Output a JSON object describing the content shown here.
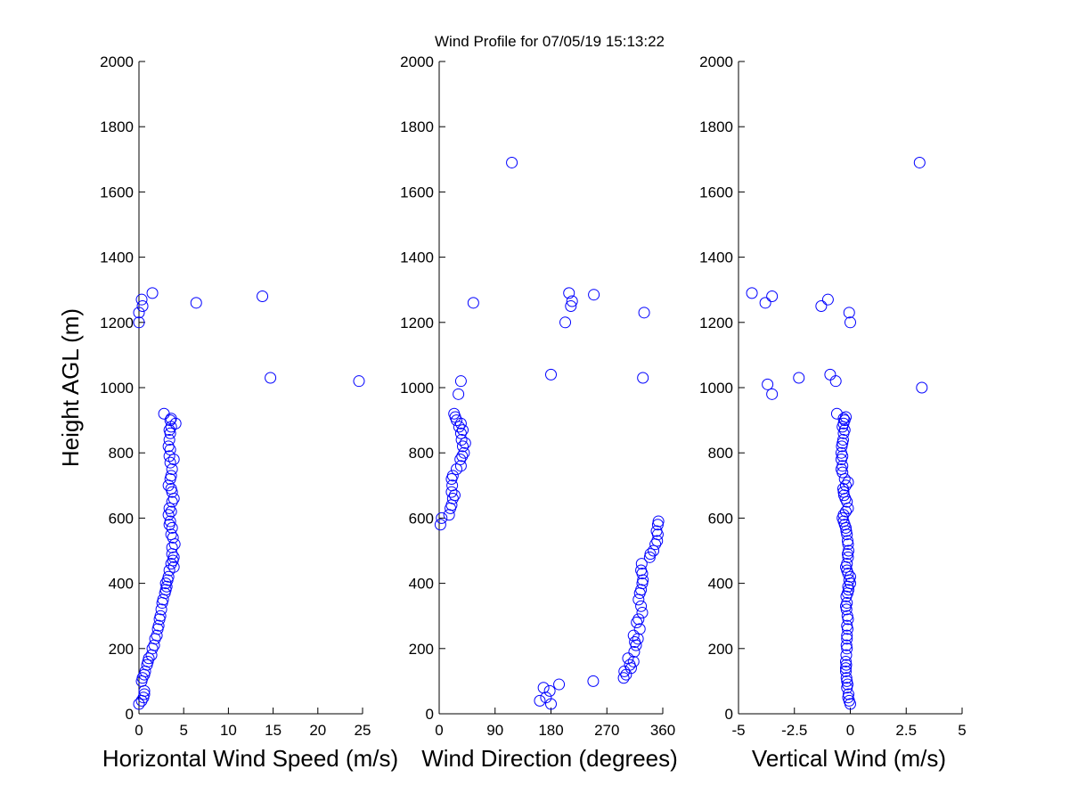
{
  "title": "Wind Profile for  07/05/19 15:13:22",
  "marker_color": "#0000ff",
  "marker_shape": "open-circle",
  "chart_data": [
    {
      "type": "scatter",
      "xlabel": "Horizontal Wind Speed (m/s)",
      "ylabel": "Height AGL (m)",
      "xlim": [
        0,
        25
      ],
      "ylim": [
        0,
        2000
      ],
      "xticks": [
        "0",
        "5",
        "10",
        "15",
        "20",
        "25"
      ],
      "yticks": [
        "0",
        "200",
        "400",
        "600",
        "800",
        "1000",
        "1200",
        "1400",
        "1600",
        "1800",
        "2000"
      ],
      "points": [
        [
          0.0,
          30
        ],
        [
          0.3,
          40
        ],
        [
          0.5,
          50
        ],
        [
          0.6,
          60
        ],
        [
          0.6,
          70
        ],
        [
          0.3,
          100
        ],
        [
          0.4,
          110
        ],
        [
          0.6,
          120
        ],
        [
          0.7,
          130
        ],
        [
          0.9,
          150
        ],
        [
          1.0,
          160
        ],
        [
          1.1,
          170
        ],
        [
          1.4,
          180
        ],
        [
          1.5,
          200
        ],
        [
          1.7,
          210
        ],
        [
          1.8,
          230
        ],
        [
          2.0,
          240
        ],
        [
          2.1,
          260
        ],
        [
          2.2,
          270
        ],
        [
          2.3,
          290
        ],
        [
          2.4,
          300
        ],
        [
          2.5,
          320
        ],
        [
          2.6,
          340
        ],
        [
          2.7,
          350
        ],
        [
          2.9,
          370
        ],
        [
          3.0,
          380
        ],
        [
          3.1,
          390
        ],
        [
          3.0,
          400
        ],
        [
          3.2,
          410
        ],
        [
          3.3,
          420
        ],
        [
          3.4,
          440
        ],
        [
          3.6,
          460
        ],
        [
          3.9,
          450
        ],
        [
          3.8,
          470
        ],
        [
          3.9,
          480
        ],
        [
          3.7,
          490
        ],
        [
          3.7,
          510
        ],
        [
          4.0,
          520
        ],
        [
          3.8,
          540
        ],
        [
          3.6,
          550
        ],
        [
          3.7,
          570
        ],
        [
          3.4,
          580
        ],
        [
          3.5,
          590
        ],
        [
          3.3,
          610
        ],
        [
          3.6,
          620
        ],
        [
          3.4,
          630
        ],
        [
          3.7,
          650
        ],
        [
          3.9,
          660
        ],
        [
          3.7,
          680
        ],
        [
          3.6,
          690
        ],
        [
          3.3,
          700
        ],
        [
          3.5,
          720
        ],
        [
          3.6,
          730
        ],
        [
          3.7,
          750
        ],
        [
          3.5,
          770
        ],
        [
          3.9,
          780
        ],
        [
          3.4,
          790
        ],
        [
          3.5,
          810
        ],
        [
          3.3,
          820
        ],
        [
          3.4,
          840
        ],
        [
          3.5,
          860
        ],
        [
          3.4,
          870
        ],
        [
          3.6,
          880
        ],
        [
          4.1,
          890
        ],
        [
          3.5,
          900
        ],
        [
          3.6,
          905
        ],
        [
          2.8,
          920
        ],
        [
          24.6,
          1020
        ],
        [
          14.7,
          1030
        ],
        [
          0.0,
          1200
        ],
        [
          0.0,
          1230
        ],
        [
          0.4,
          1250
        ],
        [
          6.4,
          1260
        ],
        [
          0.3,
          1270
        ],
        [
          13.8,
          1280
        ],
        [
          1.5,
          1290
        ]
      ]
    },
    {
      "type": "scatter",
      "xlabel": "Wind Direction (degrees)",
      "ylabel": "",
      "xlim": [
        0,
        360
      ],
      "ylim": [
        0,
        2000
      ],
      "xticks": [
        "0",
        "90",
        "180",
        "270",
        "360"
      ],
      "yticks": [
        "0",
        "200",
        "400",
        "600",
        "800",
        "1000",
        "1200",
        "1400",
        "1600",
        "1800",
        "2000"
      ],
      "points": [
        [
          180,
          30
        ],
        [
          162,
          40
        ],
        [
          172,
          50
        ],
        [
          178,
          70
        ],
        [
          168,
          80
        ],
        [
          193,
          90
        ],
        [
          248,
          100
        ],
        [
          297,
          110
        ],
        [
          301,
          120
        ],
        [
          298,
          130
        ],
        [
          309,
          140
        ],
        [
          307,
          150
        ],
        [
          313,
          160
        ],
        [
          304,
          170
        ],
        [
          314,
          190
        ],
        [
          317,
          210
        ],
        [
          315,
          220
        ],
        [
          320,
          230
        ],
        [
          313,
          240
        ],
        [
          323,
          260
        ],
        [
          318,
          280
        ],
        [
          321,
          290
        ],
        [
          327,
          310
        ],
        [
          325,
          330
        ],
        [
          321,
          350
        ],
        [
          323,
          370
        ],
        [
          325,
          380
        ],
        [
          327,
          400
        ],
        [
          328,
          410
        ],
        [
          327,
          430
        ],
        [
          325,
          440
        ],
        [
          326,
          460
        ],
        [
          339,
          480
        ],
        [
          340,
          490
        ],
        [
          345,
          500
        ],
        [
          348,
          520
        ],
        [
          351,
          530
        ],
        [
          352,
          550
        ],
        [
          350,
          560
        ],
        [
          352,
          580
        ],
        [
          353,
          590
        ],
        [
          2,
          580
        ],
        [
          4,
          600
        ],
        [
          16,
          610
        ],
        [
          18,
          630
        ],
        [
          20,
          640
        ],
        [
          22,
          660
        ],
        [
          25,
          670
        ],
        [
          20,
          680
        ],
        [
          21,
          700
        ],
        [
          20,
          720
        ],
        [
          22,
          730
        ],
        [
          28,
          750
        ],
        [
          35,
          760
        ],
        [
          34,
          780
        ],
        [
          37,
          790
        ],
        [
          40,
          800
        ],
        [
          38,
          820
        ],
        [
          42,
          830
        ],
        [
          36,
          840
        ],
        [
          35,
          860
        ],
        [
          38,
          870
        ],
        [
          32,
          880
        ],
        [
          35,
          890
        ],
        [
          28,
          900
        ],
        [
          26,
          910
        ],
        [
          24,
          920
        ],
        [
          31,
          980
        ],
        [
          35,
          1020
        ],
        [
          180,
          1040
        ],
        [
          328,
          1030
        ],
        [
          203,
          1200
        ],
        [
          330,
          1230
        ],
        [
          212,
          1250
        ],
        [
          214,
          1265
        ],
        [
          209,
          1290
        ],
        [
          249,
          1285
        ],
        [
          55,
          1260
        ],
        [
          117,
          1690
        ]
      ]
    },
    {
      "type": "scatter",
      "xlabel": "Vertical Wind (m/s)",
      "ylabel": "",
      "xlim": [
        -5,
        5
      ],
      "ylim": [
        0,
        2000
      ],
      "xticks": [
        "-5",
        "-2.5",
        "0",
        "2.5",
        "5"
      ],
      "yticks": [
        "0",
        "200",
        "400",
        "600",
        "800",
        "1000",
        "1200",
        "1400",
        "1600",
        "1800",
        "2000"
      ],
      "points": [
        [
          0.0,
          30
        ],
        [
          -0.05,
          40
        ],
        [
          -0.1,
          50
        ],
        [
          -0.08,
          60
        ],
        [
          -0.15,
          80
        ],
        [
          -0.12,
          90
        ],
        [
          -0.15,
          100
        ],
        [
          -0.17,
          110
        ],
        [
          -0.2,
          130
        ],
        [
          -0.2,
          140
        ],
        [
          -0.18,
          150
        ],
        [
          -0.2,
          160
        ],
        [
          -0.18,
          180
        ],
        [
          -0.15,
          200
        ],
        [
          -0.17,
          210
        ],
        [
          -0.15,
          230
        ],
        [
          -0.15,
          240
        ],
        [
          -0.12,
          260
        ],
        [
          -0.15,
          270
        ],
        [
          -0.1,
          290
        ],
        [
          -0.13,
          300
        ],
        [
          -0.17,
          320
        ],
        [
          -0.2,
          330
        ],
        [
          -0.15,
          340
        ],
        [
          -0.18,
          360
        ],
        [
          -0.12,
          370
        ],
        [
          -0.08,
          380
        ],
        [
          -0.1,
          390
        ],
        [
          0.0,
          400
        ],
        [
          -0.05,
          410
        ],
        [
          0.0,
          420
        ],
        [
          -0.1,
          430
        ],
        [
          -0.15,
          440
        ],
        [
          -0.2,
          450
        ],
        [
          -0.15,
          460
        ],
        [
          -0.1,
          480
        ],
        [
          -0.12,
          490
        ],
        [
          -0.08,
          500
        ],
        [
          -0.1,
          520
        ],
        [
          -0.12,
          530
        ],
        [
          -0.15,
          550
        ],
        [
          -0.18,
          560
        ],
        [
          -0.2,
          570
        ],
        [
          -0.25,
          580
        ],
        [
          -0.3,
          590
        ],
        [
          -0.35,
          600
        ],
        [
          -0.3,
          610
        ],
        [
          -0.2,
          620
        ],
        [
          -0.1,
          630
        ],
        [
          -0.15,
          650
        ],
        [
          -0.22,
          660
        ],
        [
          -0.28,
          670
        ],
        [
          -0.3,
          680
        ],
        [
          -0.32,
          690
        ],
        [
          -0.2,
          700
        ],
        [
          -0.1,
          710
        ],
        [
          -0.25,
          720
        ],
        [
          -0.35,
          740
        ],
        [
          -0.4,
          750
        ],
        [
          -0.35,
          760
        ],
        [
          -0.4,
          780
        ],
        [
          -0.35,
          790
        ],
        [
          -0.4,
          800
        ],
        [
          -0.38,
          820
        ],
        [
          -0.35,
          830
        ],
        [
          -0.32,
          840
        ],
        [
          -0.3,
          860
        ],
        [
          -0.25,
          870
        ],
        [
          -0.35,
          880
        ],
        [
          -0.3,
          890
        ],
        [
          -0.25,
          900
        ],
        [
          -0.2,
          910
        ],
        [
          -0.6,
          920
        ],
        [
          -0.3,
          905
        ],
        [
          -3.7,
          1010
        ],
        [
          -3.5,
          980
        ],
        [
          -0.9,
          1040
        ],
        [
          -0.65,
          1020
        ],
        [
          -2.3,
          1030
        ],
        [
          3.2,
          1000
        ],
        [
          0.0,
          1200
        ],
        [
          -0.05,
          1230
        ],
        [
          -1.3,
          1250
        ],
        [
          -1.0,
          1270
        ],
        [
          -3.8,
          1260
        ],
        [
          -3.5,
          1280
        ],
        [
          -4.4,
          1290
        ],
        [
          3.1,
          1690
        ]
      ]
    }
  ]
}
